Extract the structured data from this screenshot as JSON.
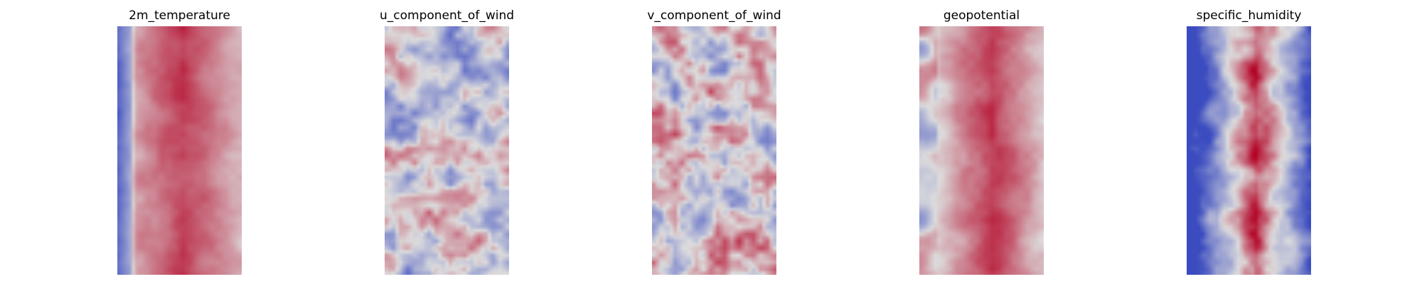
{
  "colormap": {
    "name": "coolwarm",
    "low_color": "#3b4cc0",
    "mid_color": "#dddddd",
    "high_color": "#b40426"
  },
  "panels": [
    {
      "title": "2m_temperature"
    },
    {
      "title": "u_component_of_wind"
    },
    {
      "title": "v_component_of_wind"
    },
    {
      "title": "geopotential"
    },
    {
      "title": "specific_humidity"
    }
  ]
}
